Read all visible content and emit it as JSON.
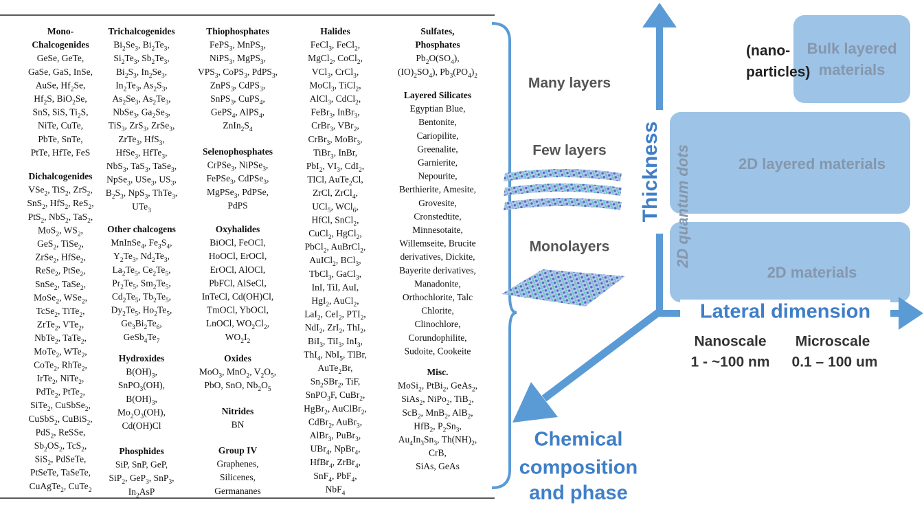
{
  "table": {
    "columns": [
      {
        "sections": [
          {
            "heading": [
              "Mono-",
              "Chalcogenides"
            ],
            "items": [
              "GeSe, GeTe,",
              "GaSe, GaS, InSe,",
              "AuSe, Hf2Se,",
              "Hf2S, BiO2Se,",
              "SnS, SiS, Ti2S,",
              "NiTe, CuTe,",
              "PbTe, SnTe,",
              "PtTe, HfTe, FeS"
            ]
          },
          {
            "heading": [
              "Dichalcogenides"
            ],
            "items": [
              "VSe2, TiS2, ZrS2,",
              "SnS2, HfS2, ReS2,",
              "PtS2, NbS2, TaS2,",
              "MoS2, WS2,",
              "GeS2, TiSe2,",
              "ZrSe2, HfSe2,",
              "ReSe2, PtSe2,",
              "SnSe2, TaSe2,",
              "MoSe2, WSe2,",
              "TcSe2, TiTe2,",
              "ZrTe2, VTe2,",
              "NbTe2, TaTe2,",
              "MoTe2, WTe2,",
              "CoTe2, RhTe2,",
              "IrTe2, NiTe2,",
              "PdTe2, PtTe2,",
              "SiTe2, CuSbSe2,",
              "CuSbS2, CuBiS2,",
              "PdS2, ReSSe,",
              "Sb2OS2, TcS2,",
              "SiS2, PdSeTe,",
              "PtSeTe, TaSeTe,",
              "CuAgTe2, CuTe2"
            ]
          }
        ]
      },
      {
        "sections": [
          {
            "heading": [
              "Trichalcogenides"
            ],
            "items": [
              "Bi2Se3, Bi2Te3,",
              "Si2Te3, Sb2Te3,",
              "Bi2S3, In2Se3,",
              "In2Te3, As2S3,",
              "As2Se3, As2Te3,",
              "NbSe3, Ga2Se3,",
              "TiS3, ZrS3, ZrSe3,",
              "ZrTe3, HfS3,",
              "HfSe3, HfTe3,",
              "NbS3, TaS3, TaSe3,",
              "NpSe3, USe3, US3,",
              "B2S3, NpS3, ThTe3,",
              "UTe3"
            ]
          },
          {
            "heading": [
              "Other chalcogens"
            ],
            "items": [
              "MnInSe4, Fe3S4,",
              "Y2Te3, Nd2Te3,",
              "La2Te5, Ce2Te5,",
              "Pr2Te5, Sm2Te5,",
              "Cd2Te5, Tb2Te5,",
              "Dy2Te5, Ho2Te5,",
              "Ge3Bi2Te6,",
              "GeSb4Te7"
            ]
          },
          {
            "heading": [
              "Hydroxides"
            ],
            "items": [
              "B(OH)3,",
              "SnPO3(OH),",
              "B(OH)3,",
              "Mo2O3(OH),",
              "Cd(OH)Cl"
            ]
          },
          {
            "heading": [
              "Phosphides"
            ],
            "items": [
              "SiP, SnP, GeP,",
              "SiP2, GeP3, SnP3,",
              "In2AsP"
            ]
          }
        ]
      },
      {
        "sections": [
          {
            "heading": [
              "Thiophosphates"
            ],
            "items": [
              "FePS3, MnPS3,",
              "NiPS3, MgPS3,",
              "VPS3, CoPS3, PdPS3,",
              "ZnPS3, CdPS3,",
              "SnPS3, CuPS4,",
              "GePS4, AlPS4,",
              "ZnIn2S4"
            ]
          },
          {
            "heading": [
              "Selenophosphates"
            ],
            "items": [
              "CrPSe3, NiPSe3,",
              "FePSe3, CdPSe3,",
              "MgPSe3, PdPSe,",
              "PdPS"
            ]
          },
          {
            "heading": [
              "Oxyhalides"
            ],
            "items": [
              "BiOCl, FeOCl,",
              "HoOCl, ErOCl,",
              "ErOCl, AlOCl,",
              "PbFCl, AlSeCl,",
              "InTeCl, Cd(OH)Cl,",
              "TmOCl, YbOCl,",
              "LnOCl, WO2Cl2,",
              "WO2I2"
            ]
          },
          {
            "heading": [
              "Oxides"
            ],
            "items": [
              "MoO3, MnO2, V2O5,",
              "PbO, SnO, Nb2O5"
            ]
          },
          {
            "heading": [
              "Nitrides"
            ],
            "items": [
              "BN"
            ]
          },
          {
            "heading": [
              "Group IV"
            ],
            "items": [
              "Graphenes,",
              "Silicenes,",
              "Germananes"
            ]
          }
        ]
      },
      {
        "sections": [
          {
            "heading": [
              "Halides"
            ],
            "items": [
              "FeCl3, FeCl2,",
              "MgCl2, CoCl2,",
              "VCl3, CrCl3,",
              "MoCl3, TiCl2,",
              "AlCl3, CdCl2,",
              "FeBr3, InBr3,",
              "CrBr3, VBr2,",
              "CrBr3, MoBr3,",
              "TiBr3, InBr,",
              "PbI2, VI3, CdI2,",
              "TlCl, AuTe2Cl,",
              "ZrCl, ZrCl4,",
              "UCl5, WCl6,",
              "HfCl, SnCl2,",
              "CuCl2, HgCl2,",
              "PbCl2, AuBrCl2,",
              "AuICl2, BCl3,",
              "TbCl3, GaCl3,",
              "InI, TiI, AuI,",
              "HgI2, AuCl2,",
              "LaI2, CeI2, PTI2,",
              "NdI2, ZrI2, ThI2,",
              "BiI3, TiI3, InI3,",
              "ThI4, NbI5, TlBr,",
              "AuTe2Br,",
              "Sn2SBr2, TiF,",
              "SnPO3F, CuBr2,",
              "HgBr2, AuClBr2,",
              "CdBr2, AuBr3,",
              "AlBr3, PuBr3,",
              "UBr4, NpBr4,",
              "HfBr4, ZrBr4,",
              "SnF4, PbF4,",
              "NbF4"
            ]
          }
        ]
      },
      {
        "sections": [
          {
            "heading": [
              "Sulfates,",
              "Phosphates"
            ],
            "items": [
              "Pb2O(SO4),",
              "(IO)2SO4), Pb3(PO4)2"
            ]
          },
          {
            "heading": [
              "Layered Silicates"
            ],
            "items": [
              "Egyptian Blue,",
              "Bentonite,",
              "Cariopilite,",
              "Greenalite,",
              "Garnierite,",
              "Nepourite,",
              "Berthierite, Amesite,",
              "Grovesite,",
              "Cronstedtite,",
              "Minnesotaite,",
              "Willemseite, Brucite",
              "derivatives, Dickite,",
              "Bayerite derivatives,",
              "Manadonite,",
              "Orthochlorite, Talc",
              "Chlorite,",
              "Clinochlore,",
              "Corundophilite,",
              "Sudoite, Cookeite"
            ]
          },
          {
            "heading": [
              "Misc."
            ],
            "items": [
              "MoSi2, PtBi2, GeAs2,",
              "SiAs2, NiPo2, TiB2,",
              "ScB2, MnB2, AlB2,",
              "HfB2, P2Sn3,",
              "Au4In3Sn3, Th(NH)2,",
              "CrB,",
              "SiAs, GeAs"
            ]
          }
        ]
      }
    ]
  },
  "diagram": {
    "axes": {
      "vertical": "Thickness",
      "horizontal": "Lateral dimension",
      "diagonal": [
        "Chemical",
        "composition",
        "and phase"
      ]
    },
    "thickness_levels": [
      "Many layers",
      "Few layers",
      "Monolayers"
    ],
    "regions": {
      "nanoparticles": [
        "(nano-",
        "particles)"
      ],
      "bulk": [
        "Bulk layered",
        "materials"
      ],
      "layered_2d": "2D layered materials",
      "materials_2d": "2D materials",
      "quantum_dots": "2D quantum dots"
    },
    "scales": [
      {
        "name": "Nanoscale",
        "range": "1 - ~100 nm"
      },
      {
        "name": "Microscale",
        "range": "0.1 – 100 um"
      }
    ]
  }
}
